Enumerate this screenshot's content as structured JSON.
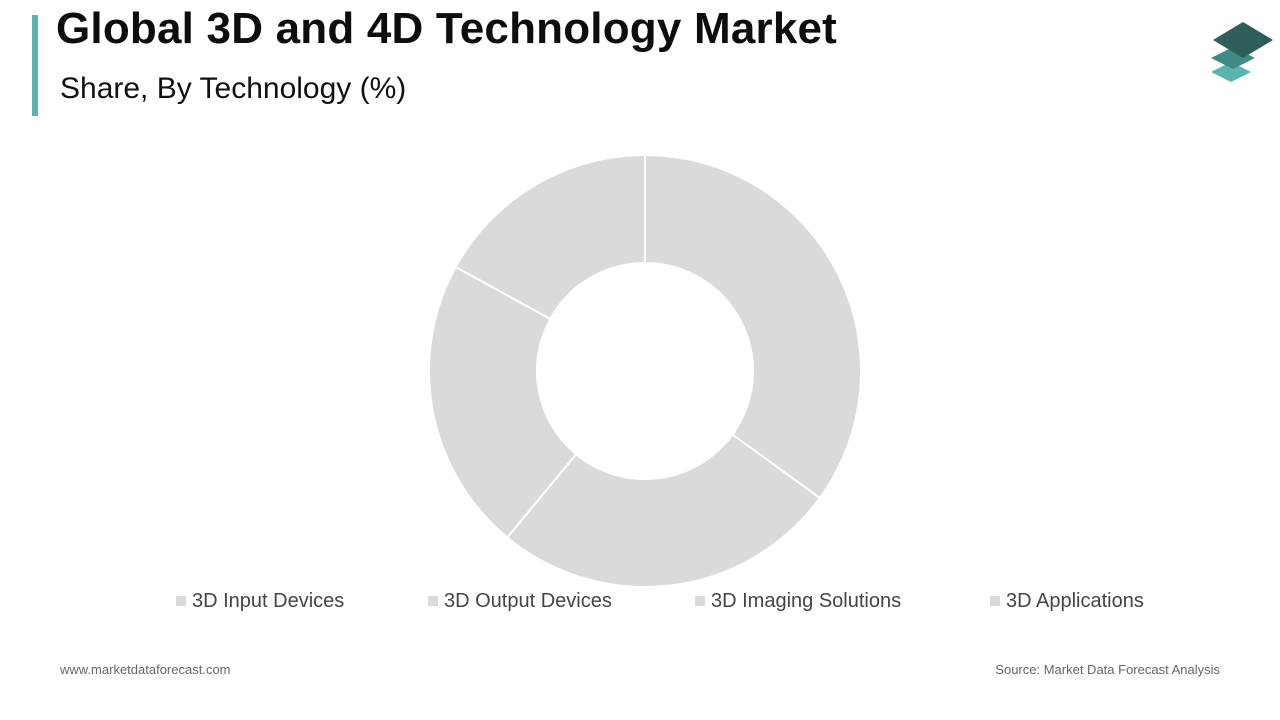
{
  "header": {
    "title": "Global 3D and 4D Technology Market",
    "subtitle": "Share, By Technology (%)"
  },
  "colors": {
    "accent": "#5bb4ae",
    "slice_fill": "#dadada",
    "slice_stroke": "#ffffff",
    "logo_dark": "#2f5e58",
    "logo_mid": "#3f8a83",
    "logo_light": "#5bb4ae"
  },
  "chart_data": {
    "type": "pie",
    "subtype": "donut",
    "categories": [
      "3D Input Devices",
      "3D Output Devices",
      "3D Imaging Solutions",
      "3D Applications"
    ],
    "values": [
      35,
      26,
      22,
      17
    ],
    "title": "Global 3D and 4D Technology Market",
    "subtitle": "Share, By Technology (%)",
    "legend_position": "bottom",
    "inner_radius_ratio": 0.5
  },
  "legend": {
    "items": [
      {
        "label": "3D Input Devices"
      },
      {
        "label": "3D Output Devices"
      },
      {
        "label": "3D Imaging Solutions"
      },
      {
        "label": "3D Applications"
      }
    ]
  },
  "footer": {
    "website": "www.marketdataforecast.com",
    "source": "Source: Market Data Forecast Analysis"
  },
  "icons": {
    "logo": "stacked-layers-icon"
  }
}
